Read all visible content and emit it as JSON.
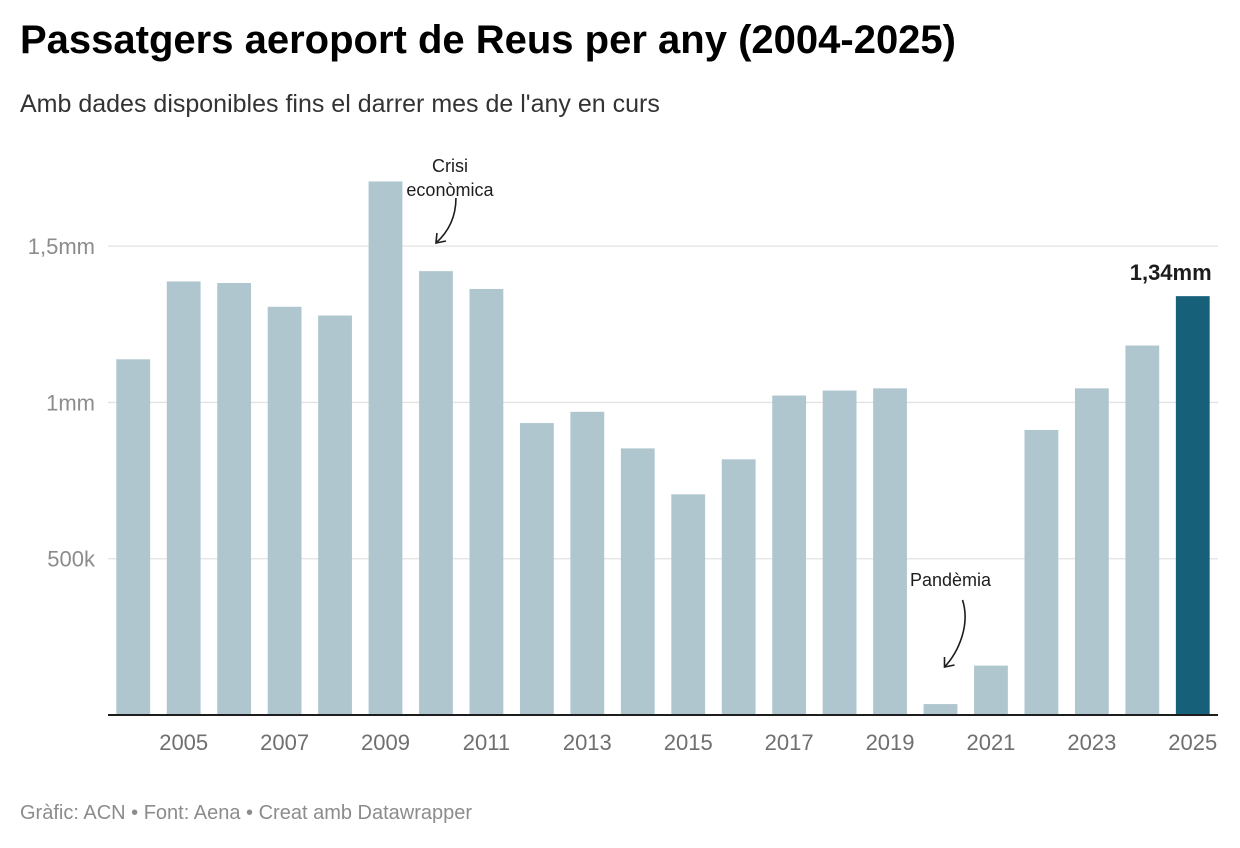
{
  "title": "Passatgers aeroport de Reus per any (2004-2025)",
  "subtitle": "Amb dades disponibles fins el darrer mes de l'any en curs",
  "footer": {
    "graphic": "Gràfic: ACN",
    "separator": "•",
    "source": "Font: Aena",
    "tool": "Creat amb Datawrapper"
  },
  "colors": {
    "bar": "#afc6cf",
    "highlight": "#17607a",
    "gridline": "#e2e2e2",
    "axis": "#1d1d1d",
    "tick_label": "#8c8c8c"
  },
  "chart_data": {
    "type": "bar",
    "categories": [
      "2004",
      "2005",
      "2006",
      "2007",
      "2008",
      "2009",
      "2010",
      "2011",
      "2012",
      "2013",
      "2014",
      "2015",
      "2016",
      "2017",
      "2018",
      "2019",
      "2020",
      "2021",
      "2022",
      "2023",
      "2024",
      "2025"
    ],
    "values": [
      1138000,
      1387000,
      1382000,
      1306000,
      1278000,
      1707000,
      1420000,
      1363000,
      934000,
      970000,
      853000,
      706000,
      818000,
      1022000,
      1038000,
      1045000,
      35000,
      158000,
      912000,
      1045000,
      1182000,
      1340000
    ],
    "highlight_category": "2025",
    "highlight_label": "1,34mm",
    "ylim": [
      0,
      1750000
    ],
    "yticks": [
      {
        "value": 500000,
        "label": "500k"
      },
      {
        "value": 1000000,
        "label": "1mm"
      },
      {
        "value": 1500000,
        "label": "1,5mm"
      }
    ],
    "xtick_labels": [
      "2005",
      "2007",
      "2009",
      "2011",
      "2013",
      "2015",
      "2017",
      "2019",
      "2021",
      "2023",
      "2025"
    ],
    "xlabel": "",
    "ylabel": "",
    "grid": true,
    "legend": "none",
    "annotations": [
      {
        "category": "2010",
        "lines": [
          "Crisi",
          "econòmica"
        ]
      },
      {
        "category": "2020",
        "lines": [
          "Pandèmia"
        ]
      }
    ]
  }
}
